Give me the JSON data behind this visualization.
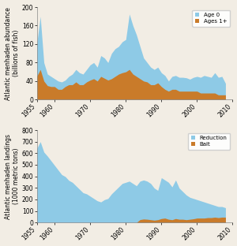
{
  "years": [
    1955,
    1956,
    1957,
    1958,
    1959,
    1960,
    1961,
    1962,
    1963,
    1964,
    1965,
    1966,
    1967,
    1968,
    1969,
    1970,
    1971,
    1972,
    1973,
    1974,
    1975,
    1976,
    1977,
    1978,
    1979,
    1980,
    1981,
    1982,
    1983,
    1984,
    1985,
    1986,
    1987,
    1988,
    1989,
    1990,
    1991,
    1992,
    1993,
    1994,
    1995,
    1996,
    1997,
    1998,
    1999,
    2000,
    2001,
    2002,
    2003,
    2004,
    2005,
    2006,
    2007,
    2008
  ],
  "age0_total": [
    120,
    180,
    80,
    55,
    50,
    45,
    40,
    38,
    42,
    50,
    55,
    65,
    58,
    55,
    65,
    75,
    80,
    70,
    95,
    90,
    80,
    100,
    110,
    115,
    125,
    130,
    185,
    160,
    140,
    115,
    90,
    80,
    70,
    65,
    70,
    58,
    52,
    40,
    50,
    52,
    48,
    48,
    47,
    44,
    48,
    50,
    48,
    52,
    50,
    48,
    58,
    48,
    50,
    35
  ],
  "ages1plus": [
    50,
    65,
    40,
    30,
    28,
    28,
    22,
    22,
    28,
    32,
    32,
    38,
    32,
    32,
    38,
    42,
    45,
    40,
    50,
    46,
    42,
    45,
    50,
    55,
    58,
    60,
    65,
    55,
    50,
    45,
    40,
    38,
    32,
    32,
    36,
    28,
    22,
    18,
    22,
    22,
    18,
    18,
    18,
    18,
    18,
    18,
    14,
    14,
    14,
    14,
    14,
    10,
    10,
    10
  ],
  "reduction": [
    640,
    700,
    610,
    575,
    535,
    495,
    455,
    415,
    398,
    365,
    348,
    318,
    288,
    258,
    248,
    228,
    208,
    188,
    178,
    198,
    208,
    248,
    278,
    308,
    338,
    348,
    358,
    338,
    318,
    358,
    368,
    358,
    338,
    298,
    278,
    388,
    368,
    348,
    308,
    368,
    298,
    268,
    238,
    218,
    208,
    198,
    188,
    178,
    168,
    158,
    148,
    138,
    138,
    128
  ],
  "bait": [
    0,
    0,
    0,
    0,
    0,
    0,
    0,
    0,
    0,
    0,
    0,
    0,
    0,
    0,
    0,
    0,
    0,
    0,
    0,
    0,
    0,
    0,
    0,
    0,
    0,
    0,
    0,
    0,
    0,
    25,
    30,
    28,
    24,
    20,
    24,
    34,
    38,
    28,
    24,
    34,
    28,
    28,
    24,
    28,
    32,
    38,
    38,
    38,
    42,
    42,
    46,
    42,
    46,
    46
  ],
  "color_age0": "#8ecae6",
  "color_ages1plus": "#c97b2a",
  "color_reduction": "#8ecae6",
  "color_bait": "#c97b2a",
  "ylabel1": "Atlantic menhaden abundance\n(billions of fish)",
  "ylabel2": "Atlantic menhaden landings\n(1000 metric tons)",
  "ylim1": [
    0,
    200
  ],
  "ylim2": [
    0,
    800
  ],
  "yticks1": [
    0,
    40,
    80,
    120,
    160,
    200
  ],
  "yticks2": [
    0,
    100,
    200,
    300,
    400,
    500,
    600,
    700,
    800
  ],
  "xticks": [
    1955,
    1960,
    1970,
    1980,
    1990,
    2000,
    2010
  ],
  "xticklabels": [
    "1955",
    "1960",
    "1970",
    "1980",
    "1990",
    "2000",
    "2010"
  ],
  "legend1_labels": [
    "Age 0",
    "Ages 1+"
  ],
  "legend2_labels": [
    "Reduction",
    "Bait"
  ],
  "bg_color": "#f2ede4",
  "plot_bg": "#f2ede4"
}
